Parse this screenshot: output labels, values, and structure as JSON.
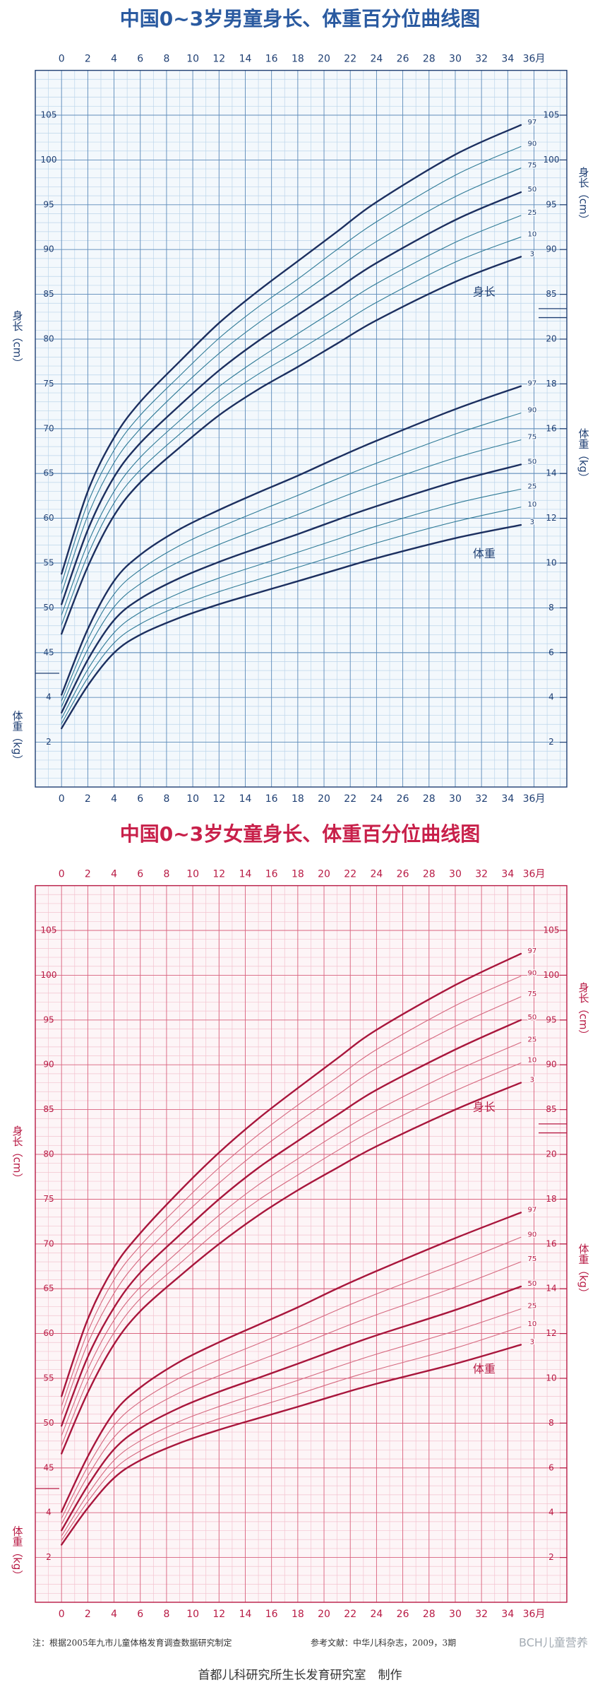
{
  "chart_data": [
    {
      "type": "line",
      "title": "中国0~3岁男童身长、体重百分位曲线图",
      "title_color": "#2a5aa0",
      "text_color": "#1f3f73",
      "background": "#f3f8fc",
      "grid_color": "#5f8cba",
      "minor_grid_color": "#bcd5ea",
      "x": [
        0,
        2,
        4,
        6,
        9,
        12,
        15,
        18,
        21,
        24,
        30,
        35
      ],
      "xlim": [
        -2,
        38.5
      ],
      "xticks": [
        0,
        2,
        4,
        6,
        8,
        10,
        12,
        14,
        16,
        18,
        20,
        22,
        24,
        26,
        28,
        30,
        32,
        34,
        {
          "value": 36,
          "label": "36月"
        }
      ],
      "ylim": [
        30,
        110
      ],
      "yticks": [
        45,
        50,
        55,
        60,
        65,
        70,
        75,
        80,
        85,
        90,
        95,
        100,
        105
      ],
      "yticks_right": [
        85,
        90,
        95,
        100,
        105
      ],
      "y2lim": [
        0,
        32
      ],
      "y2ticks": [
        2,
        4,
        6,
        8,
        10,
        12,
        14,
        16,
        18,
        20
      ],
      "y2ticks_left": [
        2,
        4
      ],
      "ylabel": "身长（cm）",
      "y2label": "体重（kg）",
      "height_label": "身长",
      "weight_label": "体重",
      "grid": true,
      "series": [
        {
          "name": "97",
          "color": "#1c2f5f",
          "linewidth": 2.4,
          "values": [
            53.8,
            63.0,
            69.0,
            73.0,
            77.5,
            81.8,
            85.4,
            88.7,
            92.0,
            95.3,
            100.6,
            103.9
          ]
        },
        {
          "name": "90",
          "color": "#2f7a96",
          "linewidth": 1.1,
          "values": [
            52.7,
            61.7,
            67.6,
            71.5,
            75.9,
            80.1,
            83.6,
            86.7,
            90.0,
            93.1,
            98.3,
            101.5
          ]
        },
        {
          "name": "75",
          "color": "#2f7a96",
          "linewidth": 1.1,
          "values": [
            51.6,
            60.3,
            66.2,
            70.0,
            74.4,
            78.4,
            81.8,
            84.8,
            87.9,
            90.9,
            95.9,
            99.1
          ]
        },
        {
          "name": "50",
          "color": "#1c2f5f",
          "linewidth": 2.4,
          "values": [
            50.4,
            58.7,
            64.6,
            68.4,
            72.6,
            76.5,
            79.8,
            82.7,
            85.6,
            88.5,
            93.3,
            96.4
          ]
        },
        {
          "name": "25",
          "color": "#2f7a96",
          "linewidth": 1.1,
          "values": [
            49.2,
            57.2,
            63.0,
            66.8,
            70.9,
            74.7,
            77.8,
            80.6,
            83.4,
            86.2,
            90.8,
            93.8
          ]
        },
        {
          "name": "10",
          "color": "#2f7a96",
          "linewidth": 1.1,
          "values": [
            48.1,
            55.9,
            61.7,
            65.4,
            69.4,
            73.1,
            76.1,
            78.7,
            81.4,
            84.1,
            88.6,
            91.4
          ]
        },
        {
          "name": "3",
          "color": "#1c2f5f",
          "linewidth": 2.4,
          "values": [
            47.1,
            54.6,
            60.3,
            64.0,
            67.9,
            71.5,
            74.4,
            76.9,
            79.5,
            82.1,
            86.4,
            89.2
          ]
        },
        {
          "name": "97",
          "axis": "y2",
          "color": "#1c2f5f",
          "linewidth": 2.4,
          "values": [
            4.12,
            7.05,
            9.2,
            10.37,
            11.51,
            12.37,
            13.15,
            13.9,
            14.7,
            15.46,
            16.87,
            17.9
          ]
        },
        {
          "name": "90",
          "axis": "y2",
          "color": "#2f7a96",
          "linewidth": 1.1,
          "values": [
            3.85,
            6.59,
            8.61,
            9.7,
            10.78,
            11.59,
            12.32,
            13.02,
            13.76,
            14.46,
            15.76,
            16.7
          ]
        },
        {
          "name": "75",
          "axis": "y2",
          "color": "#2f7a96",
          "linewidth": 1.1,
          "values": [
            3.59,
            6.15,
            8.04,
            9.07,
            10.07,
            10.83,
            11.51,
            12.17,
            12.86,
            13.51,
            14.7,
            15.5
          ]
        },
        {
          "name": "50",
          "axis": "y2",
          "color": "#1c2f5f",
          "linewidth": 2.4,
          "values": [
            3.32,
            5.68,
            7.45,
            8.41,
            9.33,
            10.05,
            10.68,
            11.29,
            11.93,
            12.54,
            13.64,
            14.4
          ]
        },
        {
          "name": "25",
          "axis": "y2",
          "color": "#2f7a96",
          "linewidth": 1.1,
          "values": [
            3.06,
            5.25,
            6.89,
            7.8,
            8.66,
            9.33,
            9.91,
            10.48,
            11.06,
            11.65,
            12.66,
            13.3
          ]
        },
        {
          "name": "10",
          "axis": "y2",
          "color": "#2f7a96",
          "linewidth": 1.1,
          "values": [
            2.83,
            4.88,
            6.43,
            7.28,
            8.09,
            8.72,
            9.27,
            9.81,
            10.35,
            10.9,
            11.85,
            12.5
          ]
        },
        {
          "name": "3",
          "axis": "y2",
          "color": "#1c2f5f",
          "linewidth": 2.4,
          "values": [
            2.62,
            4.53,
            5.99,
            6.8,
            7.56,
            8.16,
            8.68,
            9.19,
            9.71,
            10.22,
            11.11,
            11.7
          ]
        }
      ]
    },
    {
      "type": "line",
      "title": "中国0~3岁女童身长、体重百分位曲线图",
      "title_color": "#c8204a",
      "text_color": "#b81a44",
      "background": "#fdf5f7",
      "grid_color": "#d9647f",
      "minor_grid_color": "#f3c3cf",
      "x": [
        0,
        2,
        4,
        6,
        9,
        12,
        15,
        18,
        21,
        24,
        30,
        35
      ],
      "xlim": [
        -2,
        38.5
      ],
      "xticks": [
        0,
        2,
        4,
        6,
        8,
        10,
        12,
        14,
        16,
        18,
        20,
        22,
        24,
        26,
        28,
        30,
        32,
        34,
        {
          "value": 36,
          "label": "36月"
        }
      ],
      "ylim": [
        30,
        110
      ],
      "yticks": [
        45,
        50,
        55,
        60,
        65,
        70,
        75,
        80,
        85,
        90,
        95,
        100,
        105
      ],
      "yticks_right": [
        85,
        90,
        95,
        100,
        105
      ],
      "y2lim": [
        0,
        32
      ],
      "y2ticks": [
        2,
        4,
        6,
        8,
        10,
        12,
        14,
        16,
        18,
        20
      ],
      "y2ticks_left": [
        2,
        4
      ],
      "ylabel": "身长（cm）",
      "y2label": "体重（kg）",
      "height_label": "身长",
      "weight_label": "体重",
      "grid": true,
      "series": [
        {
          "name": "97",
          "color": "#a8163c",
          "linewidth": 2.4,
          "values": [
            53.0,
            61.6,
            67.4,
            71.2,
            75.9,
            80.2,
            84.0,
            87.4,
            90.7,
            93.9,
            98.9,
            102.4
          ]
        },
        {
          "name": "90",
          "color": "#d5687f",
          "linewidth": 1.1,
          "values": [
            51.9,
            60.2,
            66.0,
            69.8,
            74.3,
            78.5,
            82.2,
            85.5,
            88.6,
            91.7,
            96.6,
            99.9
          ]
        },
        {
          "name": "75",
          "color": "#d5687f",
          "linewidth": 1.1,
          "values": [
            50.9,
            58.9,
            64.5,
            68.4,
            72.8,
            76.8,
            80.4,
            83.6,
            86.6,
            89.6,
            94.3,
            97.6
          ]
        },
        {
          "name": "50",
          "color": "#a8163c",
          "linewidth": 2.4,
          "values": [
            49.7,
            57.4,
            62.9,
            66.8,
            71.0,
            75.0,
            78.5,
            81.5,
            84.4,
            87.2,
            91.7,
            95.0
          ]
        },
        {
          "name": "25",
          "color": "#d5687f",
          "linewidth": 1.1,
          "values": [
            48.6,
            56.0,
            61.5,
            65.2,
            69.3,
            73.2,
            76.6,
            79.5,
            82.3,
            84.9,
            89.3,
            92.5
          ]
        },
        {
          "name": "10",
          "color": "#d5687f",
          "linewidth": 1.1,
          "values": [
            47.5,
            54.7,
            60.1,
            63.9,
            67.8,
            71.6,
            74.9,
            77.7,
            80.4,
            82.9,
            87.1,
            90.2
          ]
        },
        {
          "name": "3",
          "color": "#a8163c",
          "linewidth": 2.4,
          "values": [
            46.6,
            53.4,
            58.8,
            62.5,
            66.4,
            70.0,
            73.2,
            76.0,
            78.5,
            80.9,
            85.0,
            88.0
          ]
        },
        {
          "name": "97",
          "axis": "y2",
          "color": "#a8163c",
          "linewidth": 2.4,
          "values": [
            4.04,
            6.51,
            8.47,
            9.59,
            10.74,
            11.61,
            12.39,
            13.17,
            14.01,
            14.79,
            16.26,
            17.4
          ]
        },
        {
          "name": "90",
          "axis": "y2",
          "color": "#d5687f",
          "linewidth": 1.1,
          "values": [
            3.75,
            6.06,
            7.9,
            8.96,
            10.02,
            10.83,
            11.55,
            12.28,
            13.05,
            13.77,
            15.12,
            16.3
          ]
        },
        {
          "name": "75",
          "axis": "y2",
          "color": "#d5687f",
          "linewidth": 1.1,
          "values": [
            3.49,
            5.64,
            7.37,
            8.37,
            9.36,
            10.12,
            10.79,
            11.46,
            12.17,
            12.84,
            14.07,
            15.2
          ]
        },
        {
          "name": "50",
          "axis": "y2",
          "color": "#a8163c",
          "linewidth": 2.4,
          "values": [
            3.21,
            5.21,
            6.83,
            7.77,
            8.69,
            9.4,
            10.02,
            10.65,
            11.3,
            11.92,
            13.05,
            14.1
          ]
        },
        {
          "name": "25",
          "axis": "y2",
          "color": "#d5687f",
          "linewidth": 1.1,
          "values": [
            2.96,
            4.82,
            6.34,
            7.21,
            8.08,
            8.74,
            9.33,
            9.91,
            10.51,
            11.08,
            12.12,
            13.1
          ]
        },
        {
          "name": "10",
          "axis": "y2",
          "color": "#d5687f",
          "linewidth": 1.1,
          "values": [
            2.76,
            4.5,
            5.93,
            6.76,
            7.58,
            8.2,
            8.75,
            9.29,
            9.86,
            10.39,
            11.35,
            12.3
          ]
        },
        {
          "name": "3",
          "axis": "y2",
          "color": "#a8163c",
          "linewidth": 2.4,
          "values": [
            2.57,
            4.21,
            5.55,
            6.34,
            7.11,
            7.7,
            8.22,
            8.73,
            9.26,
            9.76,
            10.65,
            11.5
          ]
        }
      ]
    }
  ],
  "footer": {
    "note": "注：根据2005年九市儿童体格发育调查数据研究制定",
    "reference": "参考文献：中华儿科杂志，2009，3期",
    "watermark": "BCH儿童营养",
    "credit": "首都儿科研究所生长发育研究室　制作"
  }
}
